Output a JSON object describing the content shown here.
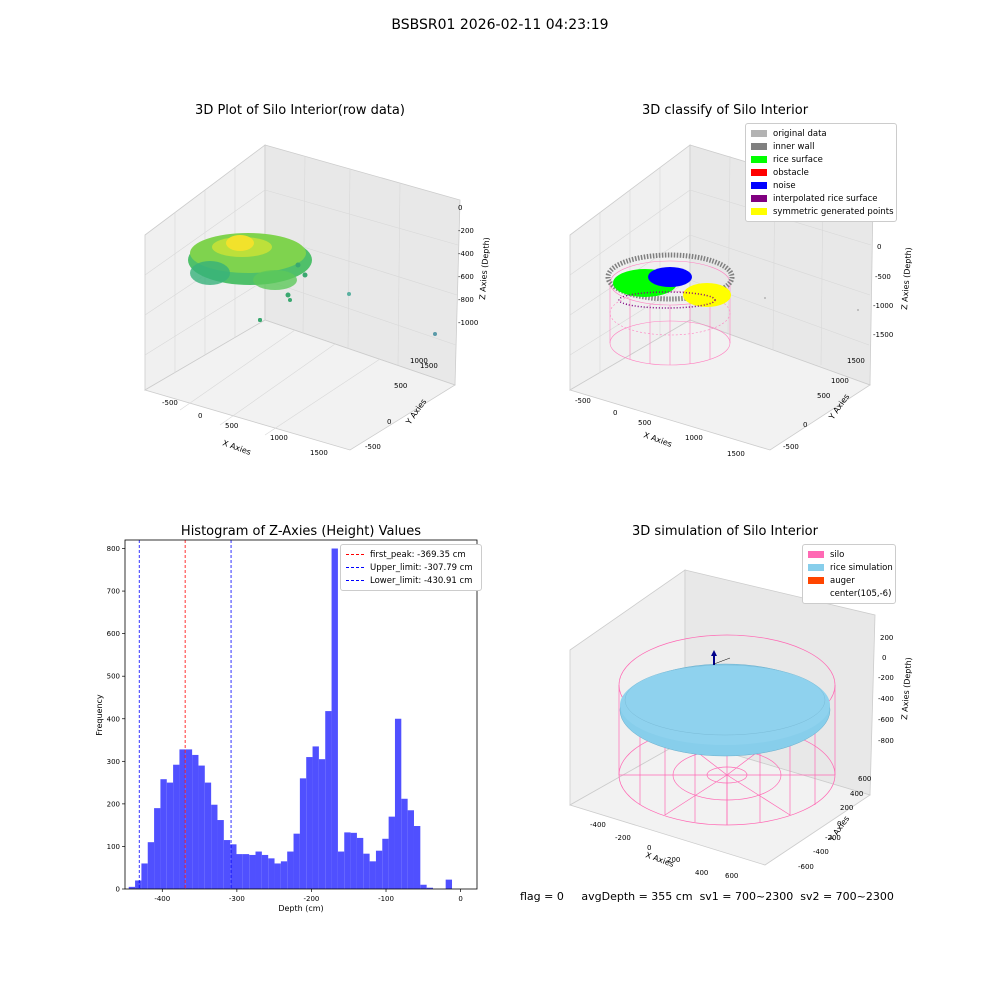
{
  "suptitle": "BSBSR01 2026-02-11 04:23:19",
  "panels": {
    "raw": {
      "title": "3D Plot of Silo Interior(row data)",
      "xlabel": "X Axies",
      "ylabel": "Y Axies",
      "zlabel": "Z Axies (Depth)",
      "xticks": [
        "-500",
        "0",
        "500",
        "1000",
        "1500"
      ],
      "yticks": [
        "-500",
        "0",
        "500",
        "1000",
        "1500"
      ],
      "zticks": [
        "0",
        "-200",
        "-400",
        "-600",
        "-800",
        "-1000"
      ]
    },
    "classify": {
      "title": "3D classify of Silo Interior",
      "xlabel": "X Axies",
      "ylabel": "Y Axies",
      "zlabel": "Z Axies (Depth)",
      "xticks": [
        "-500",
        "0",
        "500",
        "1000",
        "1500"
      ],
      "yticks": [
        "-500",
        "0",
        "500",
        "1000",
        "1500"
      ],
      "zticks": [
        "500",
        "0",
        "-500",
        "-1000",
        "-1500"
      ],
      "legend": [
        {
          "label": "original data",
          "color": "#b3b3b3"
        },
        {
          "label": "inner wall",
          "color": "#808080"
        },
        {
          "label": "rice surface",
          "color": "#00ff00"
        },
        {
          "label": "obstacle",
          "color": "#ff0000"
        },
        {
          "label": "noise",
          "color": "#0000ff"
        },
        {
          "label": "interpolated rice surface",
          "color": "#800080"
        },
        {
          "label": "symmetric generated points",
          "color": "#ffff00"
        }
      ]
    },
    "simulation": {
      "title": "3D simulation of Silo Interior",
      "xlabel": "X Axies",
      "ylabel": "Y Axies",
      "zlabel": "Z Axies (Depth)",
      "xticks": [
        "-400",
        "-200",
        "0",
        "200",
        "400",
        "600"
      ],
      "yticks": [
        "-600",
        "-400",
        "-200",
        "0",
        "200",
        "400",
        "600"
      ],
      "zticks": [
        "200",
        "0",
        "-200",
        "-400",
        "-600",
        "-800"
      ],
      "legend": [
        {
          "label": "silo",
          "color": "#ff69b4"
        },
        {
          "label": "rice simulation",
          "color": "#87ceeb"
        },
        {
          "label": "auger",
          "color": "#ff4500"
        },
        {
          "label": "center(105,-6)",
          "color": "#ffffff"
        }
      ]
    }
  },
  "stats": {
    "flag": "flag = 0",
    "avg": "avgDepth = 355 cm",
    "sv1": "sv1 = 700~2300",
    "sv2": "sv2 = 700~2300"
  },
  "chart_data": [
    {
      "type": "bar",
      "title": "Histogram of Z-Axies (Height) Values",
      "xlabel": "Depth (cm)",
      "ylabel": "Frequency",
      "xlim": [
        -450,
        22
      ],
      "ylim": [
        0,
        820
      ],
      "xticks": [
        -400,
        -300,
        -200,
        -100,
        0
      ],
      "yticks": [
        0,
        100,
        200,
        300,
        400,
        500,
        600,
        700,
        800
      ],
      "bin_width": 8.5,
      "bin_start": -445,
      "bar_color": "#5050ff",
      "values": [
        5,
        20,
        60,
        110,
        190,
        258,
        250,
        292,
        328,
        328,
        315,
        290,
        250,
        198,
        162,
        115,
        105,
        82,
        82,
        80,
        88,
        80,
        72,
        60,
        65,
        88,
        130,
        260,
        310,
        335,
        305,
        418,
        800,
        88,
        133,
        132,
        120,
        83,
        65,
        90,
        118,
        170,
        400,
        212,
        185,
        148,
        10,
        3,
        0,
        0,
        22
      ],
      "vlines": [
        {
          "x": -369.35,
          "label": "first_peak: -369.35 cm",
          "color": "#ff0000"
        },
        {
          "x": -307.79,
          "label": "Upper_limit: -307.79 cm",
          "color": "#0000ff"
        },
        {
          "x": -430.91,
          "label": "Lower_limit: -430.91 cm",
          "color": "#0000ff"
        }
      ]
    }
  ]
}
